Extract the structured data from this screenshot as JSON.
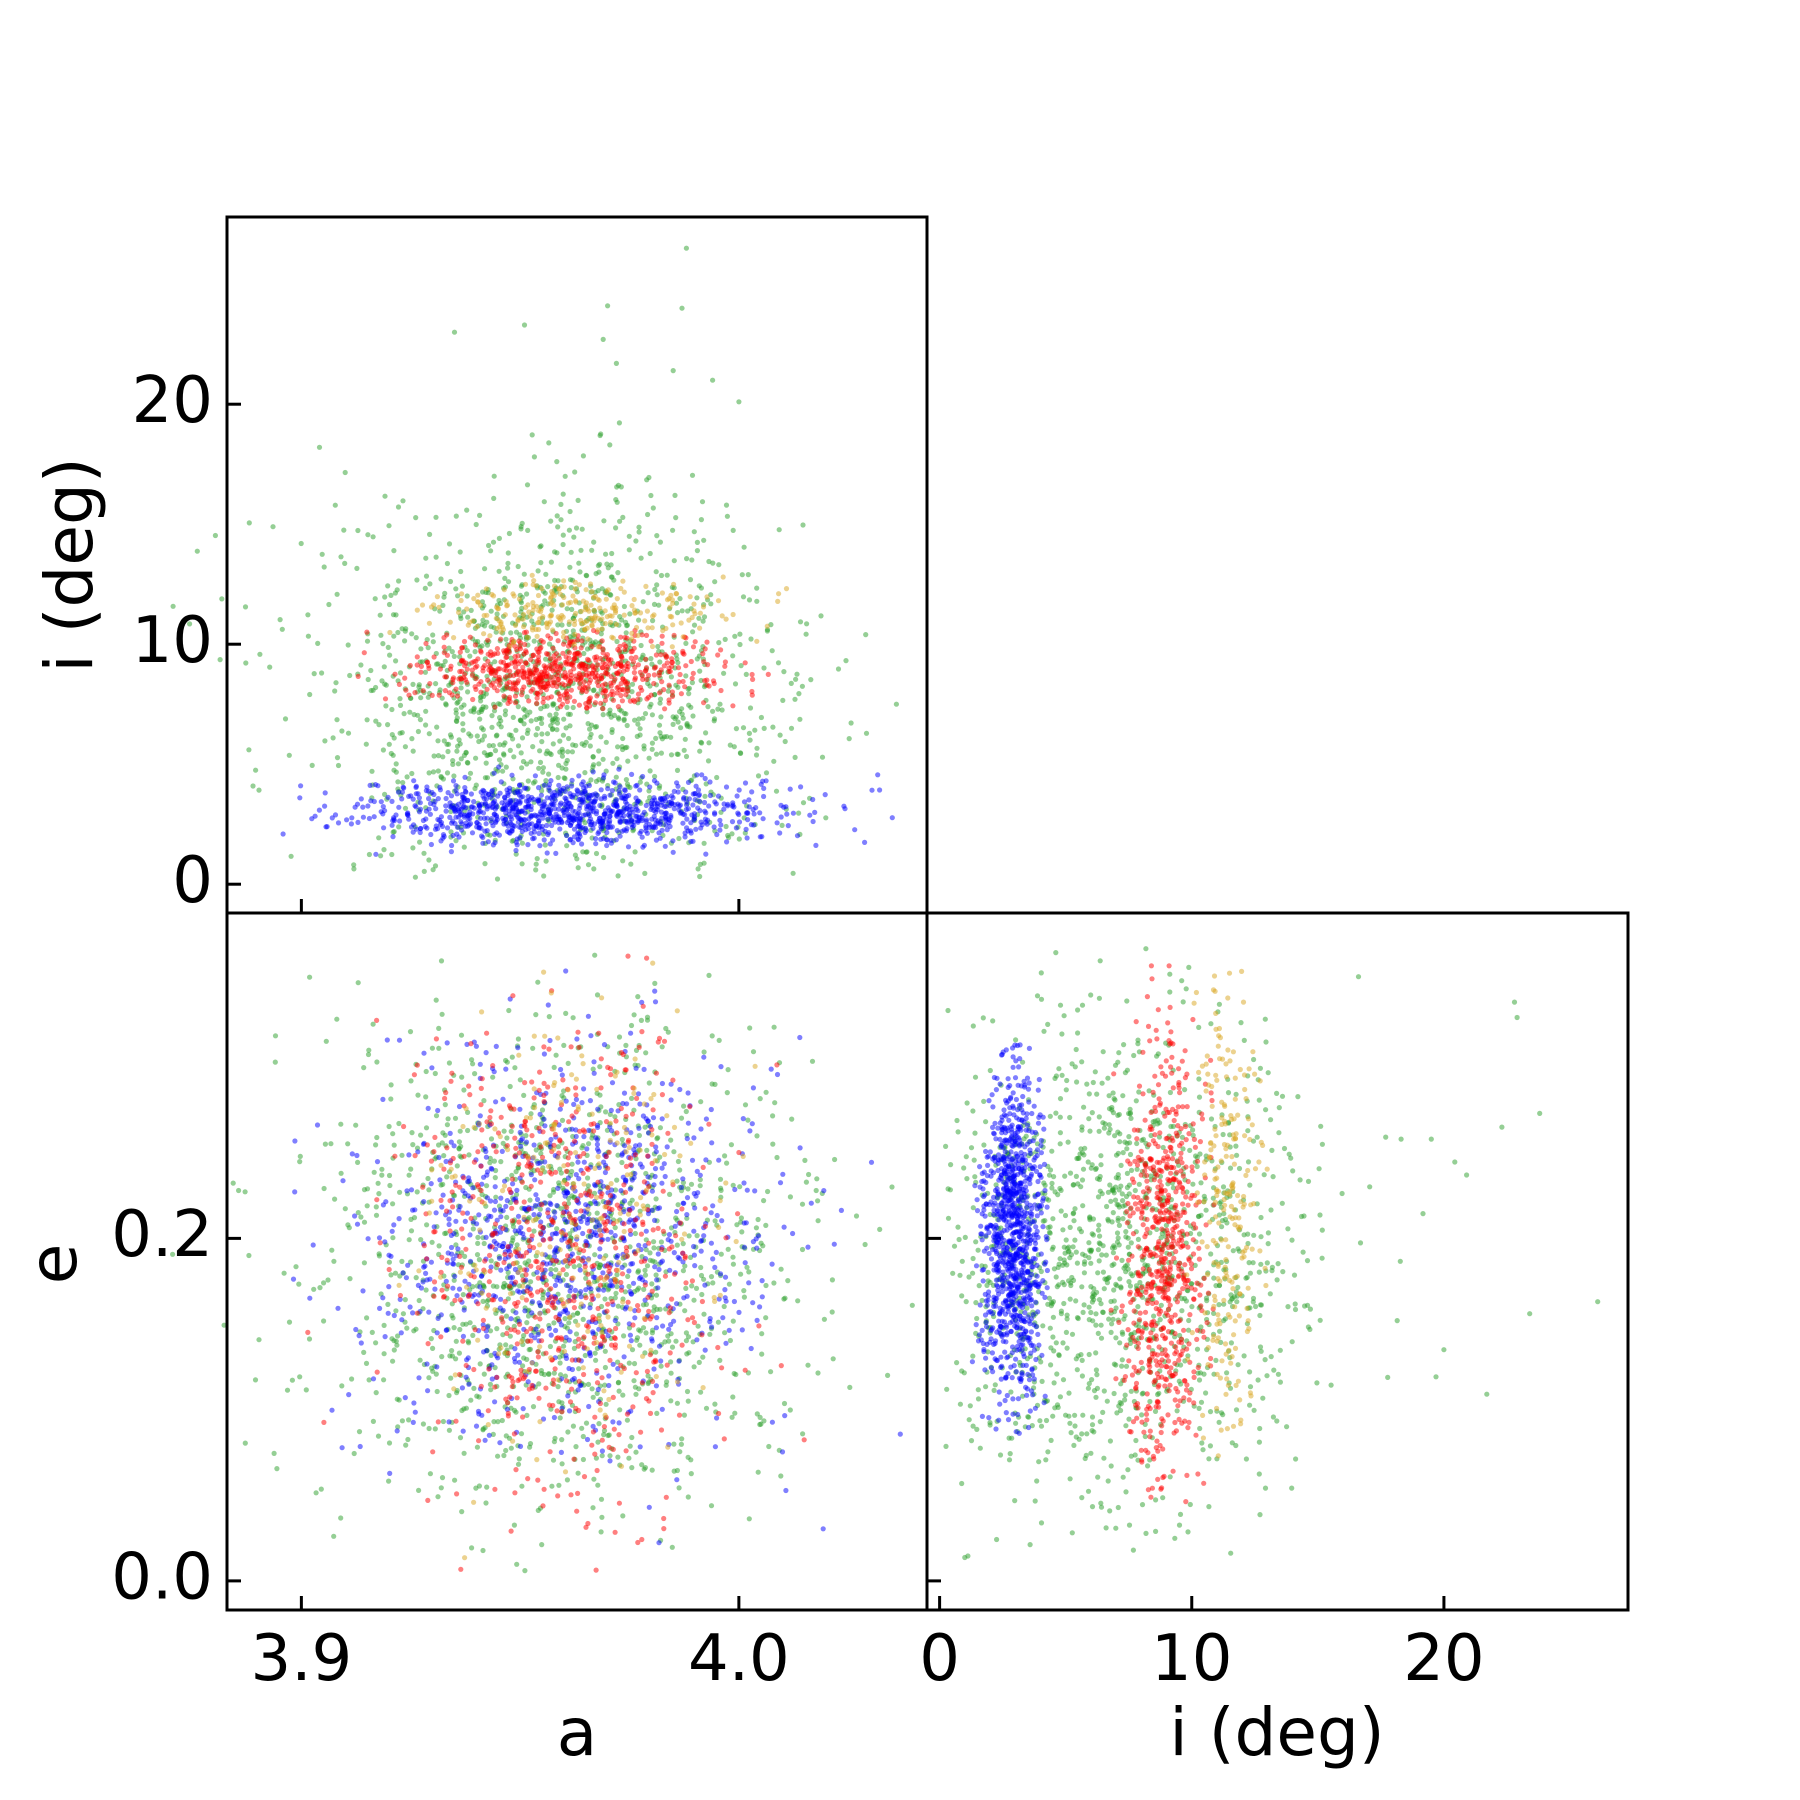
{
  "chart_data": [
    {
      "panel": "a-i",
      "type": "scatter",
      "xlabel": "",
      "ylabel": "i (deg)",
      "xlim": [
        3.883,
        4.043
      ],
      "ylim": [
        -1.2,
        27.8
      ],
      "xticks": [
        3.9,
        4.0
      ],
      "xtick_labels": [
        "",
        ""
      ],
      "yticks": [
        0,
        10,
        20
      ],
      "ytick_labels": [
        "0",
        "10",
        "20"
      ],
      "series": [
        {
          "color": "#2ca02c",
          "a_mean": 3.958,
          "a_sd": 0.026,
          "i_mean": 8.0,
          "i_sd": 4.2,
          "i_min": 0.2,
          "i_max": 26.5,
          "count": 1400
        },
        {
          "color": "#0000ff",
          "a_mean": 3.96,
          "a_sd": 0.023,
          "i_mean": 3.0,
          "i_sd": 0.65,
          "i_min": 1.2,
          "i_max": 4.9,
          "count": 1000
        },
        {
          "color": "#ff0000",
          "a_mean": 3.96,
          "a_sd": 0.016,
          "i_mean": 8.9,
          "i_sd": 0.85,
          "i_min": 7.3,
          "i_max": 10.6,
          "count": 650
        },
        {
          "color": "#daa520",
          "a_mean": 3.962,
          "a_sd": 0.016,
          "i_mean": 11.3,
          "i_sd": 0.7,
          "i_min": 9.5,
          "i_max": 12.9,
          "count": 250
        }
      ],
      "outliers": [
        {
          "a": 3.988,
          "i": 26.5
        },
        {
          "a": 3.97,
          "i": 24.1
        },
        {
          "a": 3.987,
          "i": 24.0
        },
        {
          "a": 3.935,
          "i": 23.0
        },
        {
          "a": 3.951,
          "i": 23.3
        },
        {
          "a": 3.969,
          "i": 22.7
        },
        {
          "a": 3.972,
          "i": 21.7
        },
        {
          "a": 3.985,
          "i": 21.4
        },
        {
          "a": 3.994,
          "i": 21.0
        },
        {
          "a": 4.0,
          "i": 20.1
        },
        {
          "a": 4.029,
          "i": 10.4
        },
        {
          "a": 4.036,
          "i": 7.5
        },
        {
          "a": 3.888,
          "i": 5.6
        }
      ]
    },
    {
      "panel": "a-e",
      "type": "scatter",
      "xlabel": "a",
      "ylabel": "e",
      "xlim": [
        3.883,
        4.043
      ],
      "ylim": [
        -0.017,
        0.39
      ],
      "xticks": [
        3.9,
        4.0
      ],
      "xtick_labels": [
        "3.9",
        "4.0"
      ],
      "yticks": [
        0.0,
        0.2
      ],
      "ytick_labels": [
        "0.0",
        "0.2"
      ],
      "e_range": [
        0.005,
        0.37
      ],
      "series": [
        {
          "color": "#2ca02c",
          "a_mean": 3.958,
          "a_sd": 0.026,
          "e_mean": 0.185,
          "e_sd": 0.072,
          "count": 1300
        },
        {
          "color": "#0000ff",
          "a_mean": 3.962,
          "a_sd": 0.022,
          "e_mean": 0.195,
          "e_sd": 0.055,
          "count": 950
        },
        {
          "color": "#ff0000",
          "a_mean": 3.96,
          "a_sd": 0.017,
          "e_mean": 0.185,
          "e_sd": 0.068,
          "count": 650
        },
        {
          "color": "#daa520",
          "a_mean": 3.962,
          "a_sd": 0.016,
          "e_mean": 0.21,
          "e_sd": 0.07,
          "count": 220
        }
      ],
      "outliers": [
        {
          "a": 3.888,
          "e": 0.19
        },
        {
          "a": 4.034,
          "e": 0.12
        },
        {
          "a": 4.035,
          "e": 0.23
        }
      ]
    },
    {
      "panel": "i-e",
      "type": "scatter",
      "xlabel": "i (deg)",
      "ylabel": "",
      "xlim": [
        -0.5,
        27.3
      ],
      "ylim": [
        -0.017,
        0.39
      ],
      "xticks": [
        0,
        10,
        20
      ],
      "xtick_labels": [
        "0",
        "10",
        "20"
      ],
      "yticks": [
        0.0,
        0.2
      ],
      "ytick_labels": [
        "",
        ""
      ],
      "e_range": [
        0.005,
        0.37
      ],
      "series": [
        {
          "color": "#2ca02c",
          "i_mean": 7.0,
          "i_sd": 4.0,
          "i_min": 0.2,
          "i_max": 26.0,
          "e_mean": 0.185,
          "e_sd": 0.072,
          "count": 1300
        },
        {
          "color": "#0000ff",
          "i_mean": 2.9,
          "i_sd": 0.6,
          "i_min": 1.3,
          "i_max": 4.3,
          "e_mean": 0.2,
          "e_sd": 0.048,
          "e_min": 0.085,
          "e_max": 0.315,
          "count": 1000
        },
        {
          "color": "#ff0000",
          "i_mean": 8.9,
          "i_sd": 0.85,
          "i_min": 6.8,
          "i_max": 10.9,
          "e_mean": 0.19,
          "e_sd": 0.065,
          "e_min": 0.045,
          "e_max": 0.36,
          "count": 650
        },
        {
          "color": "#daa520",
          "i_mean": 11.4,
          "i_sd": 0.7,
          "i_min": 9.8,
          "i_max": 13.0,
          "e_mean": 0.21,
          "e_sd": 0.07,
          "e_min": 0.04,
          "e_max": 0.36,
          "count": 220
        }
      ],
      "outliers": [
        {
          "i": 26.1,
          "e": 0.163
        },
        {
          "i": 23.8,
          "e": 0.273
        },
        {
          "i": 23.4,
          "e": 0.156
        },
        {
          "i": 22.9,
          "e": 0.329
        },
        {
          "i": 22.8,
          "e": 0.338
        },
        {
          "i": 22.3,
          "e": 0.265
        },
        {
          "i": 21.7,
          "e": 0.109
        },
        {
          "i": 20.9,
          "e": 0.237
        },
        {
          "i": 20.0,
          "e": 0.135
        },
        {
          "i": 19.5,
          "e": 0.258
        },
        {
          "i": 18.3,
          "e": 0.258
        }
      ]
    }
  ]
}
